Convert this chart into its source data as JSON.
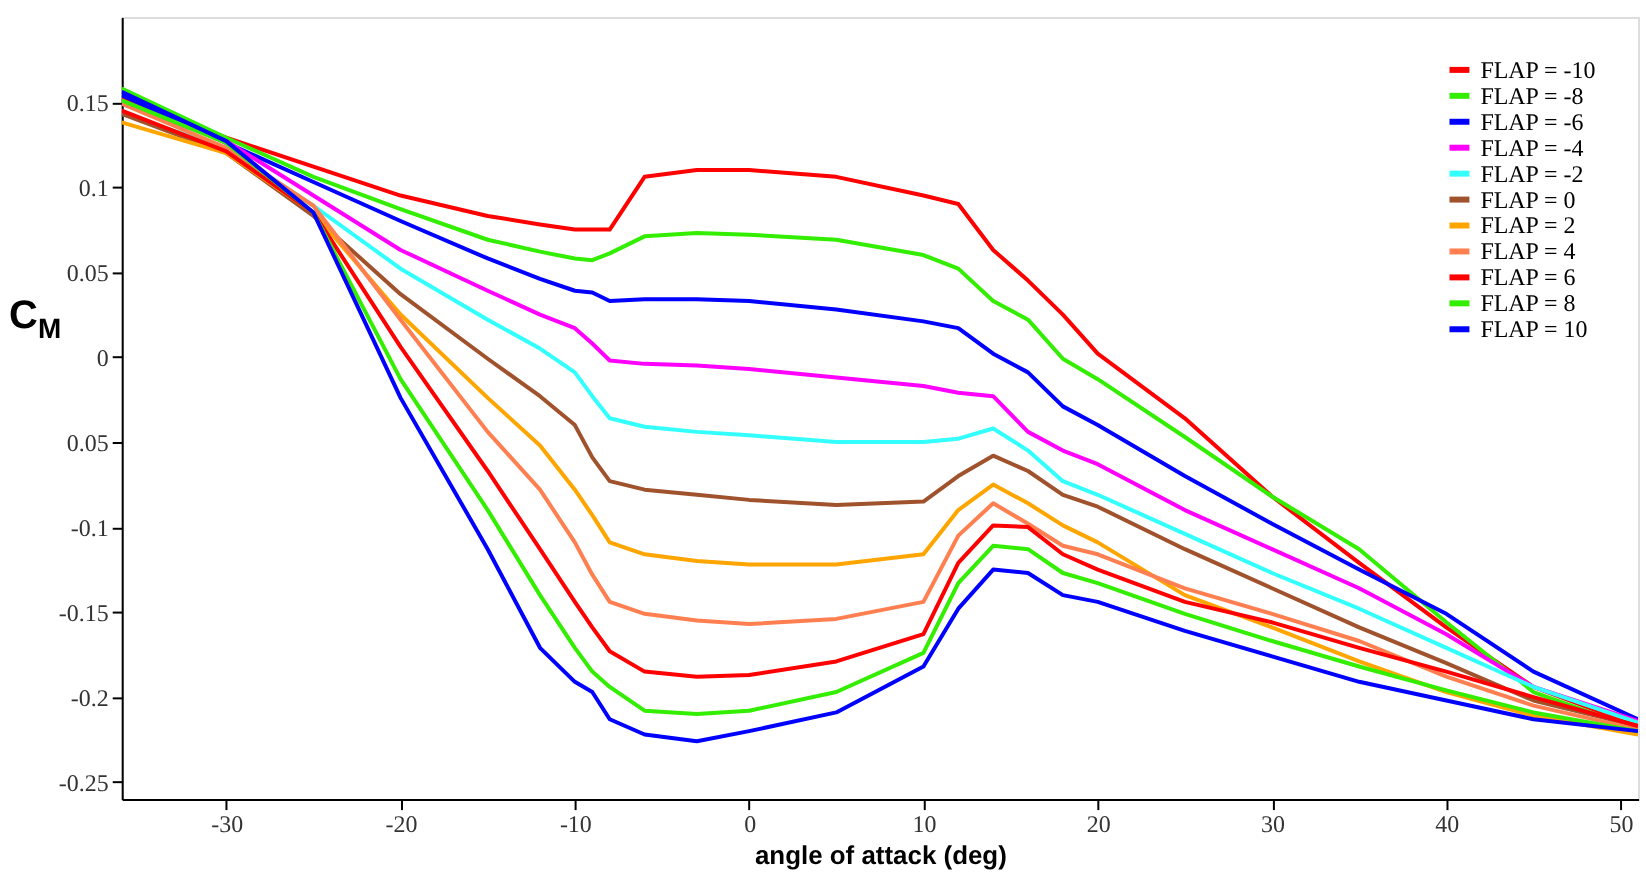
{
  "chart_data": {
    "type": "line",
    "xlabel": "angle of attack (deg)",
    "ylabel": "C$_{M}$",
    "x": [
      -36,
      -30,
      -25,
      -20,
      -15,
      -12,
      -10,
      -9,
      -8,
      -6,
      -3,
      0,
      5,
      10,
      12,
      14,
      16,
      18,
      20,
      25,
      30,
      35,
      40,
      45,
      51
    ],
    "series": [
      {
        "name": "FLAP = -10",
        "color": "#ff0000",
        "values": [
          0.152,
          0.129,
          0.112,
          0.095,
          0.083,
          0.078,
          0.075,
          0.075,
          0.075,
          0.106,
          0.11,
          0.11,
          0.106,
          0.095,
          0.09,
          0.063,
          0.045,
          0.025,
          0.002,
          -0.036,
          -0.082,
          -0.121,
          -0.159,
          -0.194,
          -0.217
        ]
      },
      {
        "name": "FLAP = -8",
        "color": "#33ee00",
        "values": [
          0.158,
          0.129,
          0.106,
          0.087,
          0.069,
          0.062,
          0.058,
          0.057,
          0.061,
          0.071,
          0.073,
          0.072,
          0.069,
          0.06,
          0.052,
          0.033,
          0.022,
          -0.001,
          -0.013,
          -0.047,
          -0.082,
          -0.113,
          -0.156,
          -0.197,
          -0.219
        ]
      },
      {
        "name": "FLAP = -6",
        "color": "#0000ff",
        "values": [
          0.154,
          0.126,
          0.103,
          0.08,
          0.058,
          0.046,
          0.039,
          0.038,
          0.033,
          0.034,
          0.034,
          0.033,
          0.028,
          0.021,
          0.017,
          0.002,
          -0.009,
          -0.029,
          -0.04,
          -0.07,
          -0.098,
          -0.125,
          -0.151,
          -0.185,
          -0.213
        ]
      },
      {
        "name": "FLAP = -4",
        "color": "#ff00ff",
        "values": [
          0.149,
          0.127,
          0.095,
          0.063,
          0.039,
          0.025,
          0.017,
          0.008,
          -0.002,
          -0.004,
          -0.005,
          -0.007,
          -0.012,
          -0.017,
          -0.021,
          -0.023,
          -0.044,
          -0.055,
          -0.063,
          -0.09,
          -0.113,
          -0.136,
          -0.163,
          -0.194,
          -0.214
        ]
      },
      {
        "name": "FLAP = -2",
        "color": "#33ffff",
        "values": [
          0.143,
          0.123,
          0.089,
          0.052,
          0.022,
          0.005,
          -0.009,
          -0.023,
          -0.036,
          -0.041,
          -0.044,
          -0.046,
          -0.05,
          -0.05,
          -0.048,
          -0.042,
          -0.055,
          -0.073,
          -0.081,
          -0.104,
          -0.127,
          -0.148,
          -0.171,
          -0.194,
          -0.215
        ]
      },
      {
        "name": "FLAP = 0",
        "color": "#a0522d",
        "values": [
          0.143,
          0.12,
          0.083,
          0.037,
          -0.001,
          -0.023,
          -0.04,
          -0.059,
          -0.073,
          -0.078,
          -0.081,
          -0.084,
          -0.087,
          -0.085,
          -0.07,
          -0.058,
          -0.067,
          -0.081,
          -0.088,
          -0.113,
          -0.136,
          -0.159,
          -0.18,
          -0.202,
          -0.217
        ]
      },
      {
        "name": "FLAP = 2",
        "color": "#ffa500",
        "values": [
          0.138,
          0.12,
          0.085,
          0.025,
          -0.024,
          -0.052,
          -0.078,
          -0.093,
          -0.109,
          -0.116,
          -0.12,
          -0.122,
          -0.122,
          -0.116,
          -0.09,
          -0.075,
          -0.086,
          -0.099,
          -0.109,
          -0.14,
          -0.159,
          -0.179,
          -0.197,
          -0.211,
          -0.222
        ]
      },
      {
        "name": "FLAP = 4",
        "color": "#ff7f50",
        "values": [
          0.149,
          0.123,
          0.089,
          0.022,
          -0.044,
          -0.078,
          -0.109,
          -0.128,
          -0.144,
          -0.151,
          -0.155,
          -0.157,
          -0.154,
          -0.144,
          -0.105,
          -0.086,
          -0.098,
          -0.111,
          -0.116,
          -0.136,
          -0.151,
          -0.167,
          -0.188,
          -0.205,
          -0.219
        ]
      },
      {
        "name": "FLAP = 6",
        "color": "#ff0000",
        "values": [
          0.145,
          0.121,
          0.085,
          0.006,
          -0.067,
          -0.113,
          -0.144,
          -0.159,
          -0.173,
          -0.185,
          -0.188,
          -0.187,
          -0.179,
          -0.163,
          -0.121,
          -0.099,
          -0.1,
          -0.116,
          -0.125,
          -0.144,
          -0.156,
          -0.171,
          -0.185,
          -0.2,
          -0.217
        ]
      },
      {
        "name": "FLAP = 8",
        "color": "#33ee00",
        "values": [
          0.151,
          0.126,
          0.085,
          -0.013,
          -0.09,
          -0.14,
          -0.171,
          -0.185,
          -0.194,
          -0.208,
          -0.21,
          -0.208,
          -0.197,
          -0.174,
          -0.133,
          -0.111,
          -0.113,
          -0.127,
          -0.133,
          -0.151,
          -0.167,
          -0.182,
          -0.196,
          -0.209,
          -0.22
        ]
      },
      {
        "name": "FLAP = 10",
        "color": "#0000ff",
        "values": [
          0.156,
          0.127,
          0.085,
          -0.024,
          -0.113,
          -0.171,
          -0.191,
          -0.197,
          -0.213,
          -0.222,
          -0.226,
          -0.22,
          -0.209,
          -0.182,
          -0.148,
          -0.125,
          -0.127,
          -0.14,
          -0.144,
          -0.161,
          -0.176,
          -0.191,
          -0.202,
          -0.213,
          -0.22
        ]
      }
    ],
    "xlim": [
      -36,
      51
    ],
    "xticks": [
      -30,
      -20,
      -10,
      0,
      10,
      20,
      30,
      40,
      50
    ],
    "ylim": [
      -0.26,
      0.2
    ],
    "yticks": [
      0.15,
      0.1,
      0.05,
      0,
      {
        "value": -0.05,
        "label": "0.05"
      },
      -0.1,
      -0.15,
      -0.2,
      -0.25
    ],
    "grid": false,
    "legend": "top right",
    "marker": "none",
    "line_style": "solid"
  }
}
